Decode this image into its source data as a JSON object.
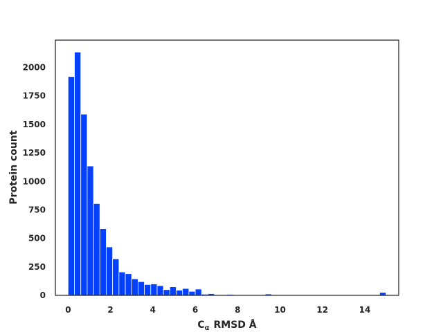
{
  "chart_data": {
    "type": "bar",
    "xlabel_main": "C",
    "xlabel_sub": "α",
    "xlabel_rest": "RMSD  Å",
    "ylabel": "Protein  count",
    "xlim": [
      -0.6,
      15.6
    ],
    "ylim": [
      0,
      2240
    ],
    "xticks": [
      0,
      2,
      4,
      6,
      8,
      10,
      12,
      14
    ],
    "yticks": [
      0,
      250,
      500,
      750,
      1000,
      1250,
      1500,
      1750,
      2000
    ],
    "bin_width": 0.3,
    "bar_color": "#0340ff",
    "x": [
      0.15,
      0.45,
      0.75,
      1.05,
      1.35,
      1.65,
      1.95,
      2.25,
      2.55,
      2.85,
      3.15,
      3.45,
      3.75,
      4.05,
      4.35,
      4.65,
      4.95,
      5.25,
      5.55,
      5.85,
      6.15,
      6.45,
      6.75,
      7.05,
      7.35,
      7.65,
      7.95,
      8.25,
      8.55,
      8.85,
      9.15,
      9.45,
      9.75,
      10.05,
      10.35,
      14.85
    ],
    "values": [
      1920,
      2135,
      1590,
      1135,
      805,
      585,
      425,
      320,
      205,
      190,
      145,
      120,
      95,
      100,
      85,
      50,
      75,
      45,
      60,
      35,
      55,
      10,
      15,
      3,
      3,
      8,
      3,
      3,
      3,
      3,
      3,
      12,
      3,
      3,
      3,
      25
    ]
  }
}
